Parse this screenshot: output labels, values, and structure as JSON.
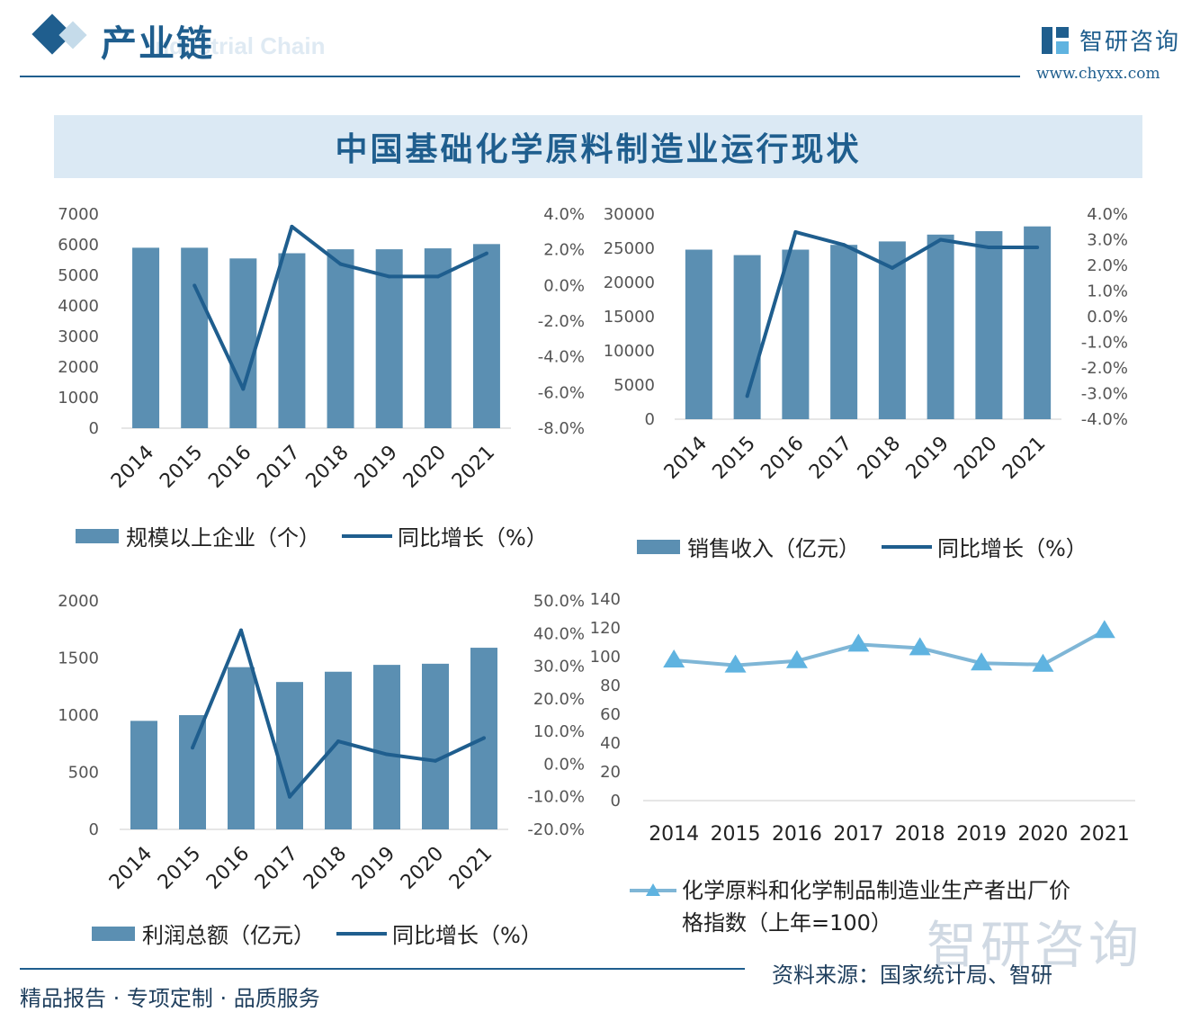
{
  "header": {
    "title": "产业链",
    "subtitle": "Industrial Chain",
    "logo_text": "智研咨询",
    "logo_url": "www.chyxx.com"
  },
  "banner_title": "中国基础化学原料制造业运行现状",
  "colors": {
    "bar": "#5b8fb2",
    "line": "#1f5e8e",
    "marker": "#5fb3e0",
    "accent": "#1f5e8e"
  },
  "chart_data": [
    {
      "type": "bar",
      "categories": [
        "2014",
        "2015",
        "2016",
        "2017",
        "2018",
        "2019",
        "2020",
        "2021"
      ],
      "series": [
        {
          "name": "规模以上企业（个）",
          "type": "bar",
          "axis": "left",
          "values": [
            5900,
            5900,
            5550,
            5720,
            5850,
            5850,
            5880,
            6020
          ]
        },
        {
          "name": "同比增长（%）",
          "type": "line",
          "axis": "right",
          "values": [
            null,
            0.0,
            -5.8,
            3.3,
            1.2,
            0.5,
            0.5,
            1.8
          ]
        }
      ],
      "left_axis": {
        "min": 0,
        "max": 7000,
        "ticks": [
          "7000",
          "6000",
          "5000",
          "4000",
          "3000",
          "2000",
          "1000",
          "0"
        ]
      },
      "right_axis": {
        "min": -8,
        "max": 4,
        "ticks": [
          "4.0%",
          "2.0%",
          "0.0%",
          "-2.0%",
          "-4.0%",
          "-6.0%",
          "-8.0%"
        ]
      }
    },
    {
      "type": "bar",
      "categories": [
        "2014",
        "2015",
        "2016",
        "2017",
        "2018",
        "2019",
        "2020",
        "2021"
      ],
      "series": [
        {
          "name": "销售收入（亿元）",
          "type": "bar",
          "axis": "left",
          "values": [
            24800,
            24000,
            24800,
            25500,
            26000,
            27000,
            27500,
            28200
          ]
        },
        {
          "name": "同比增长（%）",
          "type": "line",
          "axis": "right",
          "values": [
            null,
            -3.1,
            3.3,
            2.8,
            1.9,
            3.0,
            2.7,
            2.7
          ]
        }
      ],
      "left_axis": {
        "min": 0,
        "max": 30000,
        "ticks": [
          "30000",
          "25000",
          "20000",
          "15000",
          "10000",
          "5000",
          "0"
        ]
      },
      "right_axis": {
        "min": -4,
        "max": 4,
        "ticks": [
          "4.0%",
          "3.0%",
          "2.0%",
          "1.0%",
          "0.0%",
          "-1.0%",
          "-2.0%",
          "-3.0%",
          "-4.0%"
        ]
      }
    },
    {
      "type": "bar",
      "categories": [
        "2014",
        "2015",
        "2016",
        "2017",
        "2018",
        "2019",
        "2020",
        "2021"
      ],
      "series": [
        {
          "name": "利润总额（亿元）",
          "type": "bar",
          "axis": "left",
          "values": [
            950,
            1000,
            1420,
            1290,
            1380,
            1440,
            1450,
            1590
          ]
        },
        {
          "name": "同比增长（%）",
          "type": "line",
          "axis": "right",
          "values": [
            null,
            5.0,
            41.0,
            -10.0,
            7.0,
            3.0,
            1.0,
            8.0
          ]
        }
      ],
      "left_axis": {
        "min": 0,
        "max": 2000,
        "ticks": [
          "2000",
          "1500",
          "1000",
          "500",
          "0"
        ]
      },
      "right_axis": {
        "min": -20,
        "max": 50,
        "ticks": [
          "50.0%",
          "40.0%",
          "30.0%",
          "20.0%",
          "10.0%",
          "0.0%",
          "-10.0%",
          "-20.0%"
        ]
      }
    },
    {
      "type": "line",
      "categories": [
        "2014",
        "2015",
        "2016",
        "2017",
        "2018",
        "2019",
        "2020",
        "2021"
      ],
      "series": [
        {
          "name": "化学原料和化学制品制造业生产者出厂价格指数（上年=100）",
          "values": [
            97.5,
            94.0,
            97.0,
            108.5,
            106.0,
            95.5,
            94.5,
            118.0
          ]
        }
      ],
      "left_axis": {
        "min": 0,
        "max": 140,
        "ticks": [
          "140",
          "120",
          "100",
          "80",
          "60",
          "40",
          "20",
          "0"
        ]
      }
    }
  ],
  "legends": {
    "c1_bar": "规模以上企业（个）",
    "c1_line": "同比增长（%）",
    "c2_bar": "销售收入（亿元）",
    "c2_line": "同比增长（%）",
    "c3_bar": "利润总额（亿元）",
    "c3_line": "同比增长（%）",
    "c4_line_1": "化学原料和化学制品制造业生产者出厂价",
    "c4_line_2": "格指数（上年=100）"
  },
  "footer": {
    "left": "精品报告 · 专项定制 · 品质服务",
    "right": "资料来源：国家统计局、智研",
    "watermark": "智研咨询"
  }
}
